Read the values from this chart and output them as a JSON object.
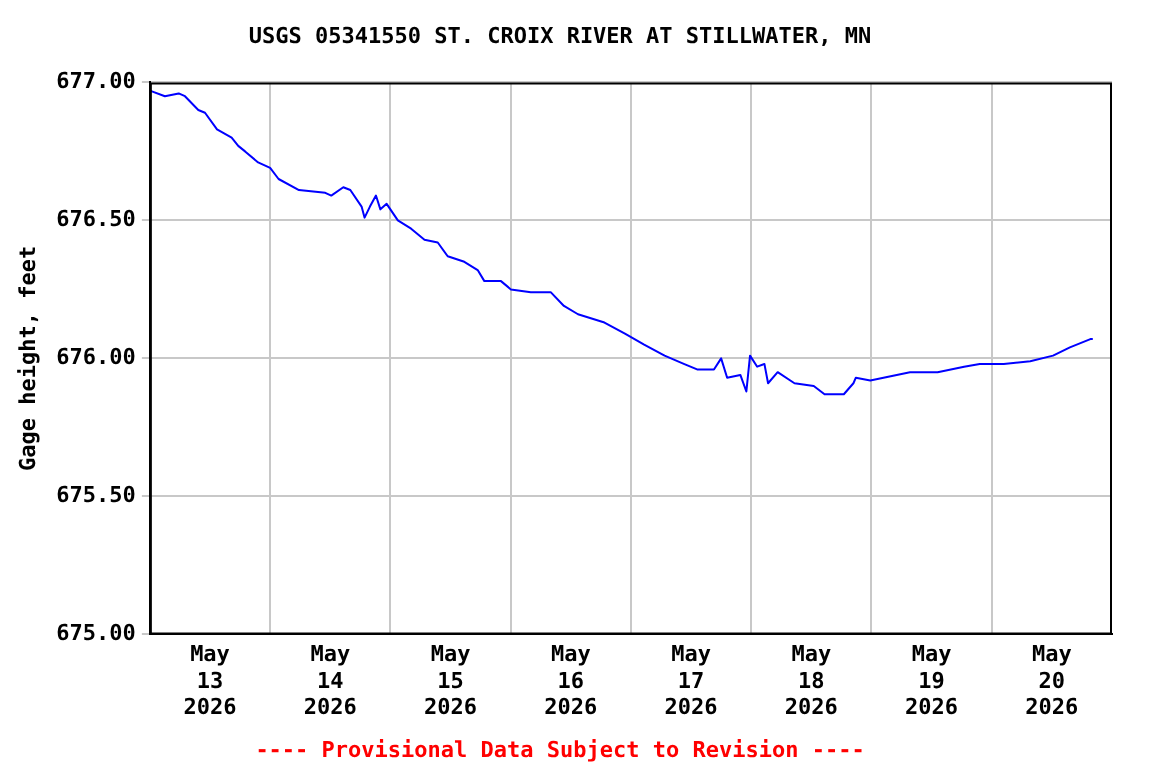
{
  "chart_data": {
    "type": "line",
    "title": "USGS 05341550 ST. CROIX RIVER AT STILLWATER, MN",
    "ylabel": "Gage height, feet",
    "annotations": [
      "---- Provisional Data Subject to Revision ----"
    ],
    "x": [
      "2026-05-13T00:00",
      "2026-05-13T03:00",
      "2026-05-13T05:45",
      "2026-05-13T07:00",
      "2026-05-13T09:40",
      "2026-05-13T11:00",
      "2026-05-13T13:24",
      "2026-05-13T16:19",
      "2026-05-13T17:38",
      "2026-05-13T19:00",
      "2026-05-13T21:36",
      "2026-05-14T00:00",
      "2026-05-14T01:41",
      "2026-05-14T05:45",
      "2026-05-14T11:00",
      "2026-05-14T12:12",
      "2026-05-14T14:36",
      "2026-05-14T16:00",
      "2026-05-14T18:15",
      "2026-05-14T18:51",
      "2026-05-14T19:55",
      "2026-05-14T21:07",
      "2026-05-14T22:00",
      "2026-05-14T23:15",
      "2026-05-15T01:29",
      "2026-05-15T04:08",
      "2026-05-15T06:48",
      "2026-05-15T09:27",
      "2026-05-15T11:26",
      "2026-05-15T14:45",
      "2026-05-15T17:25",
      "2026-05-15T18:45",
      "2026-05-15T22:04",
      "2026-05-16T00:03",
      "2026-05-16T04:01",
      "2026-05-16T07:59",
      "2026-05-16T10:38",
      "2026-05-16T13:26",
      "2026-05-16T18:43",
      "2026-05-16T22:48",
      "2026-05-17T02:38",
      "2026-05-17T06:43",
      "2026-05-17T10:33",
      "2026-05-17T13:12",
      "2026-05-17T16:34",
      "2026-05-17T18:00",
      "2026-05-17T19:12",
      "2026-05-17T21:50",
      "2026-05-17T23:02",
      "2026-05-17T23:46",
      "2026-05-18T01:12",
      "2026-05-18T02:38",
      "2026-05-18T03:22",
      "2026-05-18T05:17",
      "2026-05-18T08:38",
      "2026-05-18T12:29",
      "2026-05-18T14:38",
      "2026-05-18T18:29",
      "2026-05-18T20:24",
      "2026-05-18T20:53",
      "2026-05-18T23:46",
      "2026-05-19T02:24",
      "2026-05-19T07:41",
      "2026-05-19T13:12",
      "2026-05-19T18:29",
      "2026-05-19T21:36",
      "2026-05-20T02:24",
      "2026-05-20T07:41",
      "2026-05-20T12:14",
      "2026-05-20T15:36",
      "2026-05-20T19:41",
      "2026-05-20T20:10"
    ],
    "series": [
      {
        "color": "#0000ff",
        "values": [
          676.97,
          676.95,
          676.96,
          676.95,
          676.9,
          676.89,
          676.83,
          676.8,
          676.77,
          676.75,
          676.71,
          676.69,
          676.65,
          676.61,
          676.6,
          676.59,
          676.62,
          676.61,
          676.55,
          676.51,
          676.55,
          676.59,
          676.54,
          676.56,
          676.5,
          676.47,
          676.43,
          676.42,
          676.37,
          676.35,
          676.32,
          676.28,
          676.28,
          676.25,
          676.24,
          676.24,
          676.19,
          676.16,
          676.13,
          676.09,
          676.05,
          676.01,
          675.98,
          675.96,
          675.96,
          676.0,
          675.93,
          675.94,
          675.88,
          676.01,
          675.97,
          675.98,
          675.91,
          675.95,
          675.91,
          675.9,
          675.87,
          675.87,
          675.91,
          675.93,
          675.92,
          675.93,
          675.95,
          675.95,
          675.97,
          675.98,
          675.98,
          675.99,
          676.01,
          676.04,
          676.07,
          676.07
        ]
      }
    ],
    "xlim": [
      "2026-05-13T00:00",
      "2026-05-21T00:00"
    ],
    "xticks": [
      {
        "value": "2026-05-13T12:00",
        "label": "May\n13\n2026"
      },
      {
        "value": "2026-05-14T00:00",
        "label": null
      },
      {
        "value": "2026-05-14T12:00",
        "label": "May\n14\n2026"
      },
      {
        "value": "2026-05-15T00:00",
        "label": null
      },
      {
        "value": "2026-05-15T12:00",
        "label": "May\n15\n2026"
      },
      {
        "value": "2026-05-16T00:00",
        "label": null
      },
      {
        "value": "2026-05-16T12:00",
        "label": "May\n16\n2026"
      },
      {
        "value": "2026-05-17T00:00",
        "label": null
      },
      {
        "value": "2026-05-17T12:00",
        "label": "May\n17\n2026"
      },
      {
        "value": "2026-05-18T00:00",
        "label": null
      },
      {
        "value": "2026-05-18T12:00",
        "label": "May\n18\n2026"
      },
      {
        "value": "2026-05-19T00:00",
        "label": null
      },
      {
        "value": "2026-05-19T12:00",
        "label": "May\n19\n2026"
      },
      {
        "value": "2026-05-20T00:00",
        "label": null
      },
      {
        "value": "2026-05-20T12:00",
        "label": "May\n20\n2026"
      }
    ],
    "ylim": [
      675,
      677
    ],
    "yticks": [
      {
        "value": 675,
        "label": "675.00"
      },
      {
        "value": 675.5,
        "label": "675.50"
      },
      {
        "value": 676,
        "label": "676.00"
      },
      {
        "value": 676.5,
        "label": "676.50"
      },
      {
        "value": 677,
        "label": "677.00"
      }
    ],
    "grid": true,
    "legend": false,
    "marker": "none",
    "line_style": "solid"
  }
}
